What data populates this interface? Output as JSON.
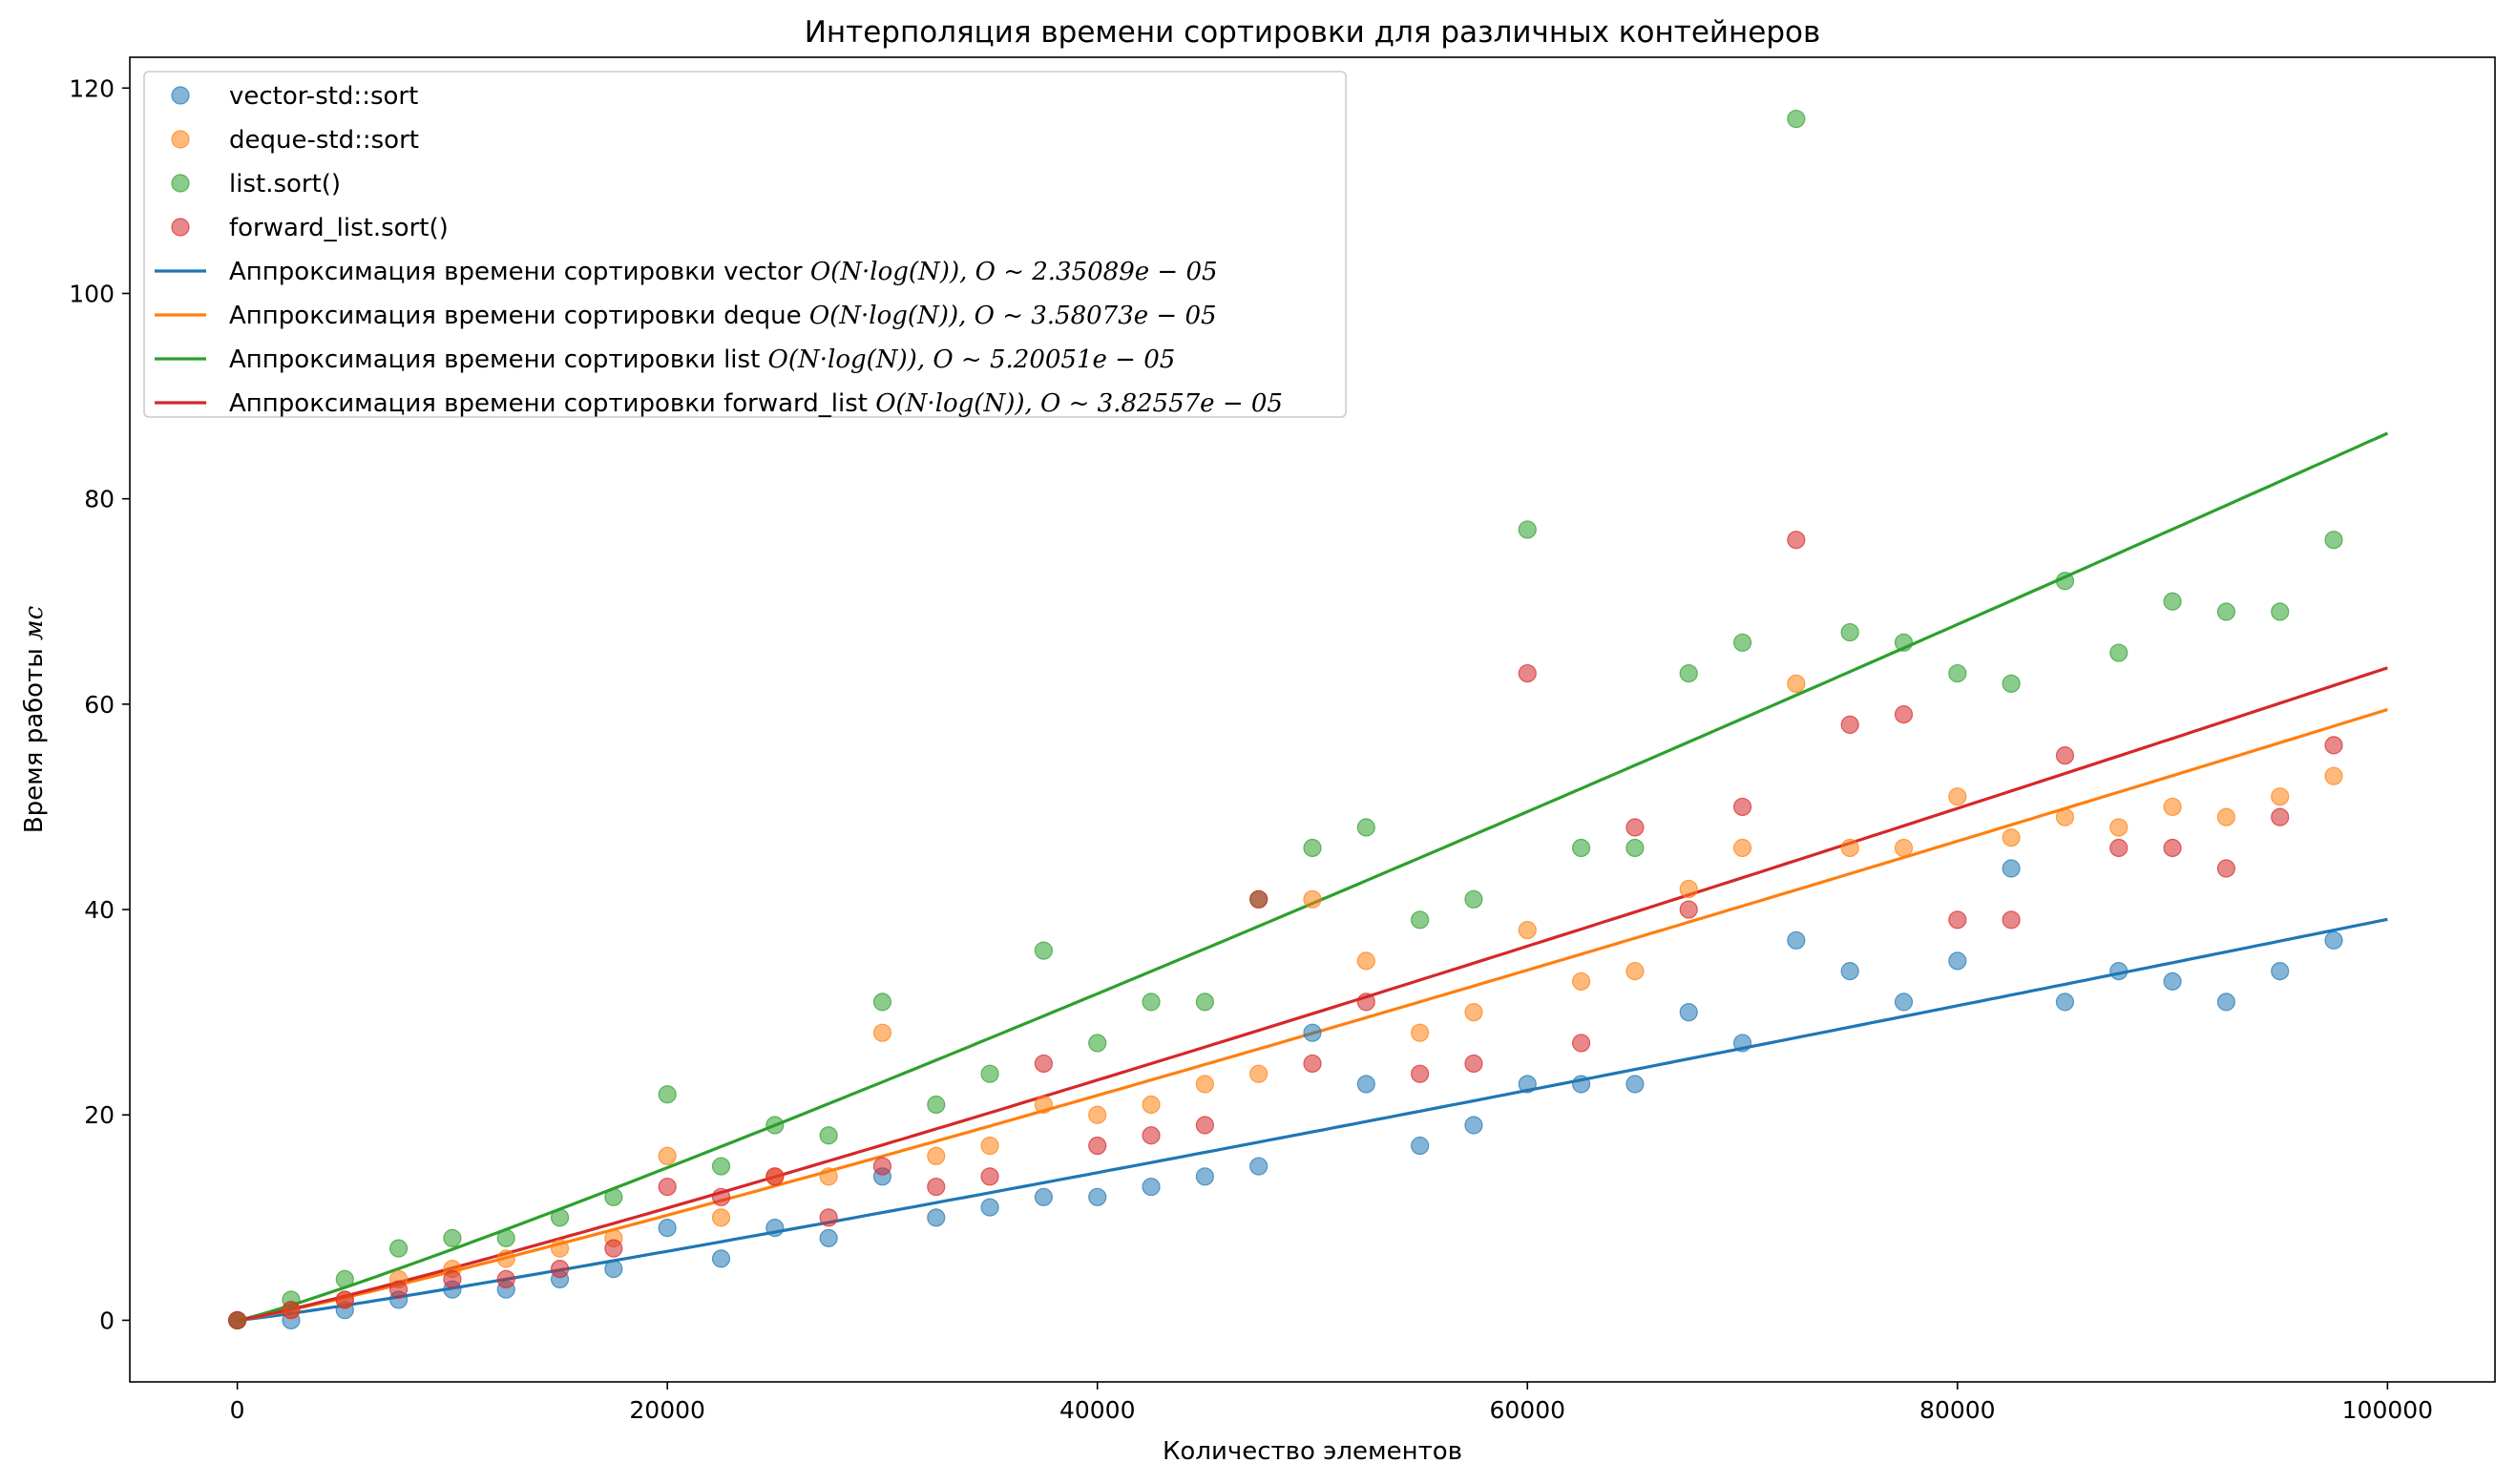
{
  "chart_data": {
    "type": "scatter",
    "title": "Интерполяция времени сортировки для различных контейнеров",
    "xlabel": "Количество элементов",
    "ylabel_text": "Время работы ",
    "ylabel_unit": "мс",
    "xlim": [
      -5000,
      105000
    ],
    "ylim": [
      -6,
      123
    ],
    "xticks": [
      0,
      20000,
      40000,
      60000,
      80000,
      100000
    ],
    "yticks": [
      0,
      20,
      40,
      60,
      80,
      100,
      120
    ],
    "legend_position": "upper-left",
    "grid": false,
    "x": [
      0,
      2500,
      5000,
      7500,
      10000,
      12500,
      15000,
      17500,
      20000,
      22500,
      25000,
      27500,
      30000,
      32500,
      35000,
      37500,
      40000,
      42500,
      45000,
      47500,
      50000,
      52500,
      55000,
      57500,
      60000,
      62500,
      65000,
      67500,
      70000,
      72500,
      75000,
      77500,
      80000,
      82500,
      85000,
      87500,
      90000,
      92500,
      95000,
      97500
    ],
    "series": [
      {
        "name": "vector-std::sort",
        "color": "#1f77b4",
        "values": [
          0,
          0,
          1,
          2,
          3,
          3,
          4,
          5,
          9,
          6,
          9,
          8,
          14,
          10,
          11,
          12,
          12,
          13,
          14,
          15,
          28,
          23,
          17,
          19,
          23,
          23,
          23,
          30,
          27,
          37,
          34,
          31,
          35,
          44,
          31,
          34,
          33,
          31,
          34,
          37
        ]
      },
      {
        "name": "deque-std::sort",
        "color": "#ff7f0e",
        "values": [
          0,
          1,
          2,
          4,
          5,
          6,
          7,
          8,
          16,
          10,
          14,
          14,
          28,
          16,
          17,
          21,
          20,
          21,
          23,
          24,
          41,
          35,
          28,
          30,
          38,
          33,
          34,
          42,
          46,
          62,
          46,
          46,
          51,
          47,
          49,
          48,
          50,
          49,
          51,
          53
        ]
      },
      {
        "name": "list.sort()",
        "color": "#2ca02c",
        "values": [
          0,
          2,
          4,
          7,
          8,
          8,
          10,
          12,
          22,
          15,
          19,
          18,
          31,
          21,
          24,
          36,
          27,
          31,
          31,
          41,
          46,
          48,
          39,
          41,
          77,
          46,
          46,
          63,
          66,
          117,
          67,
          66,
          63,
          62,
          72,
          65,
          70,
          69,
          69,
          76
        ]
      },
      {
        "name": "forward_list.sort()",
        "color": "#d62728",
        "values": [
          0,
          1,
          2,
          3,
          4,
          4,
          5,
          7,
          13,
          12,
          14,
          10,
          15,
          13,
          14,
          25,
          17,
          18,
          19,
          41,
          25,
          31,
          24,
          25,
          63,
          27,
          48,
          40,
          50,
          76,
          58,
          59,
          39,
          39,
          55,
          46,
          46,
          44,
          49,
          56
        ]
      }
    ],
    "fits": [
      {
        "label": "Аппроксимация времени сортировки vector ",
        "formula": "O(N·log(N)), O ~ 2.35089e − 05",
        "coef": 2.35089e-05,
        "color": "#1f77b4"
      },
      {
        "label": "Аппроксимация времени сортировки deque ",
        "formula": "O(N·log(N)), O ~ 3.58073e − 05",
        "coef": 3.58073e-05,
        "color": "#ff7f0e"
      },
      {
        "label": "Аппроксимация времени сортировки list ",
        "formula": "O(N·log(N)), O ~ 5.20051e − 05",
        "coef": 5.20051e-05,
        "color": "#2ca02c"
      },
      {
        "label": "Аппроксимация времени сортировки forward_list ",
        "formula": "O(N·log(N)), O ~ 3.82557e − 05",
        "coef": 3.82557e-05,
        "color": "#d62728"
      }
    ]
  }
}
